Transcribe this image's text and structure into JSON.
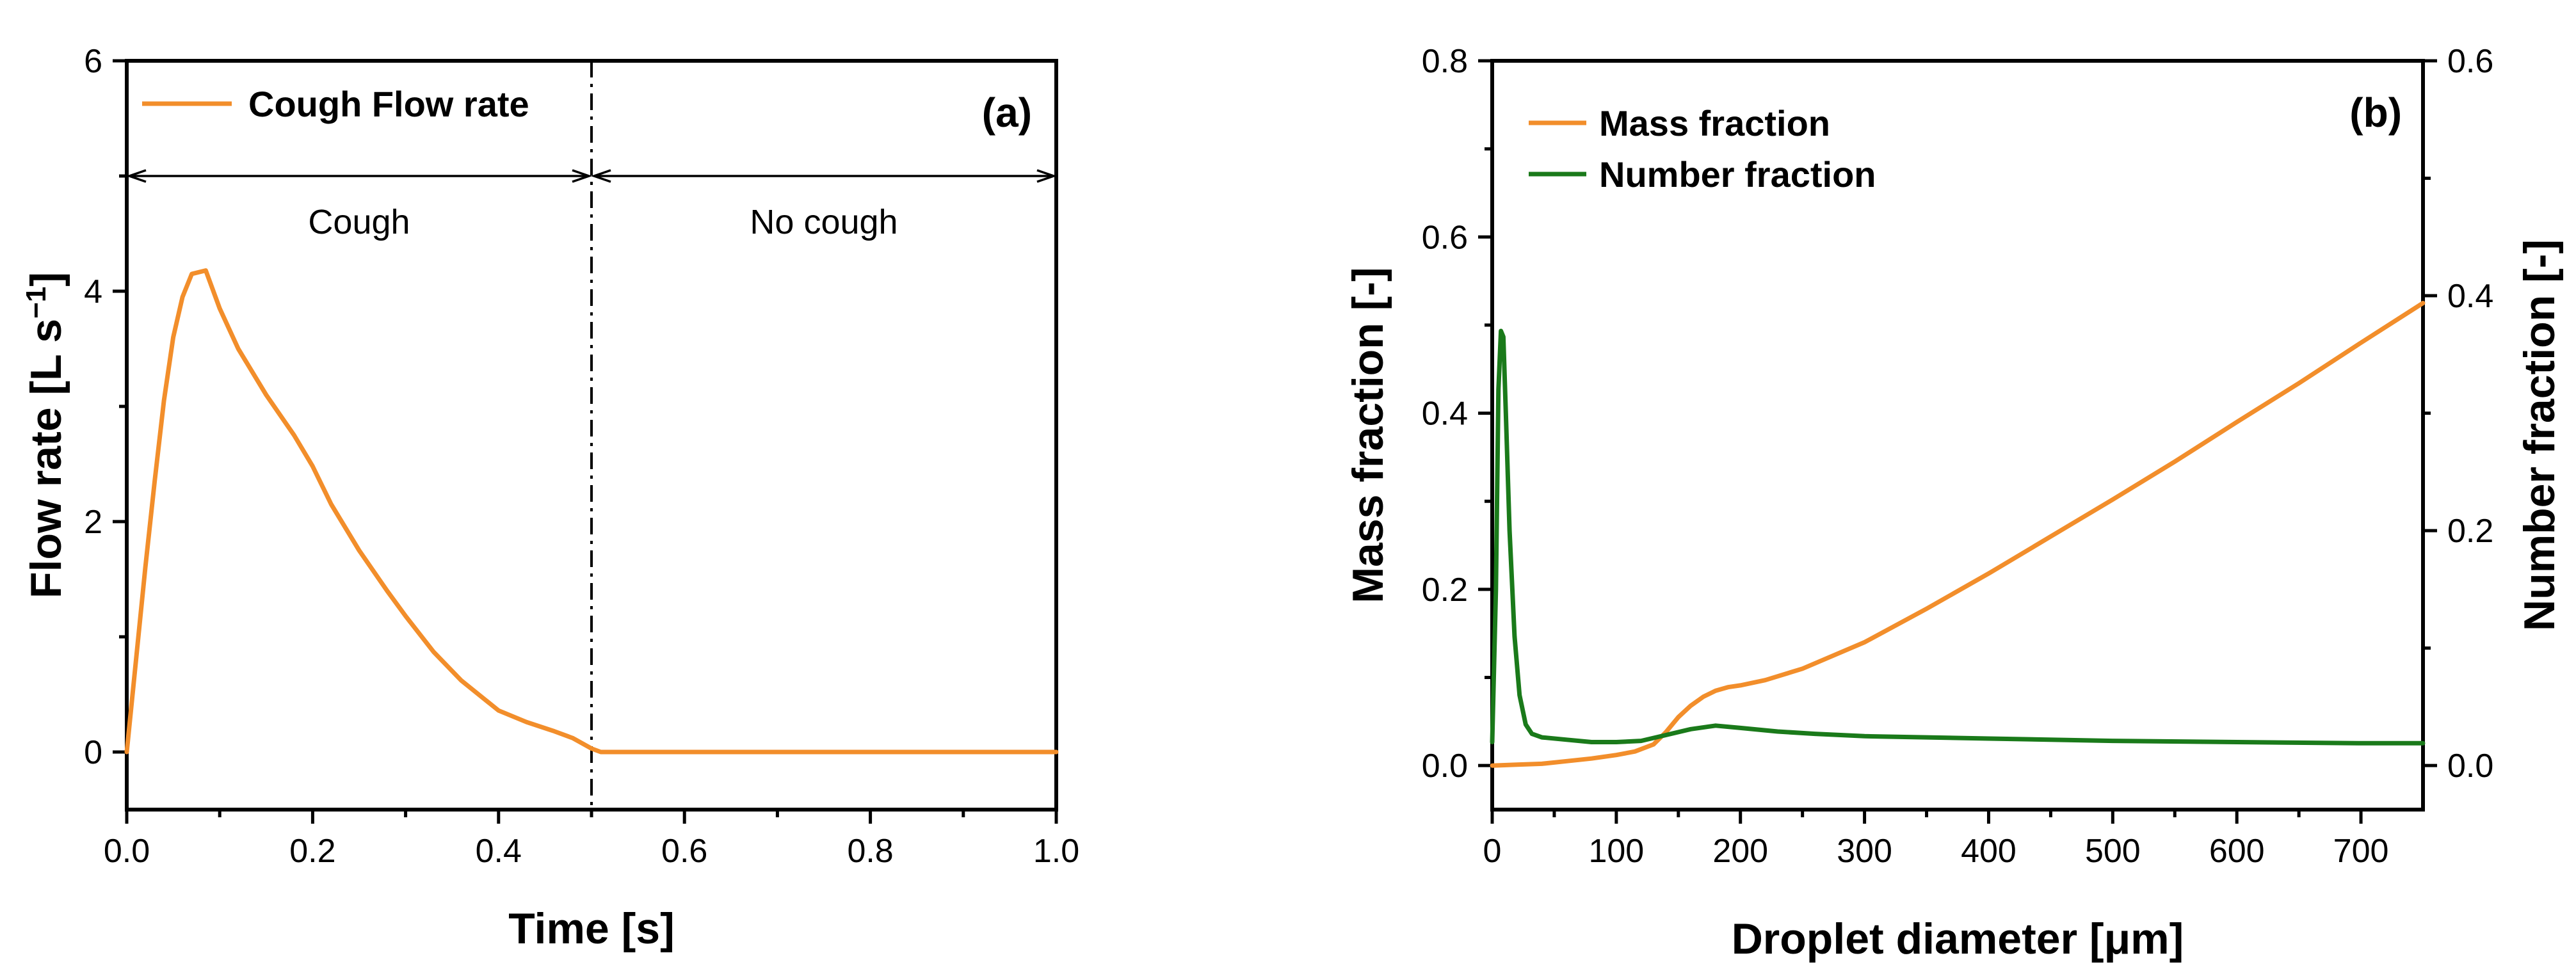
{
  "chart_data": [
    {
      "panel_label": "(a)",
      "type": "line",
      "title": "",
      "xlabel": "Time [s]",
      "ylabel": "Flow rate [L s",
      "ylabel_superscript": "−1",
      "ylabel_suffix": "]",
      "xlim": [
        0.0,
        1.0
      ],
      "ylim": [
        -0.5,
        6
      ],
      "xticks": [
        0.0,
        0.2,
        0.4,
        0.6,
        0.8,
        1.0
      ],
      "xtick_labels": [
        "0.0",
        "0.2",
        "0.4",
        "0.6",
        "0.8",
        "1.0"
      ],
      "yticks": [
        0,
        2,
        4,
        6
      ],
      "ytick_labels": [
        "0",
        "2",
        "4",
        "6"
      ],
      "legend": [
        "Cough Flow rate"
      ],
      "legend_position": "top-left",
      "annotations": {
        "divider_x": 0.5,
        "arrow_y": 5.0,
        "cough_label": "Cough",
        "no_cough_label": "No cough",
        "label_y": 4.6
      },
      "series": [
        {
          "name": "Cough Flow rate",
          "color": "#F28E2B",
          "x": [
            0.0,
            0.01,
            0.02,
            0.03,
            0.04,
            0.05,
            0.06,
            0.07,
            0.085,
            0.1,
            0.12,
            0.15,
            0.18,
            0.2,
            0.22,
            0.25,
            0.28,
            0.3,
            0.33,
            0.36,
            0.4,
            0.43,
            0.46,
            0.48,
            0.5,
            0.51,
            0.6,
            0.7,
            0.8,
            0.9,
            1.0
          ],
          "y": [
            0.0,
            0.8,
            1.6,
            2.35,
            3.05,
            3.6,
            3.95,
            4.15,
            4.18,
            3.85,
            3.5,
            3.1,
            2.75,
            2.48,
            2.15,
            1.75,
            1.4,
            1.18,
            0.87,
            0.62,
            0.36,
            0.26,
            0.18,
            0.12,
            0.03,
            0.0,
            0.0,
            0.0,
            0.0,
            0.0,
            0.0
          ]
        }
      ]
    },
    {
      "panel_label": "(b)",
      "type": "line",
      "title": "",
      "xlabel": "Droplet diameter [μm]",
      "ylabel": "Mass fraction [-]",
      "ylabel_right": "Number fraction [-]",
      "xlim": [
        0,
        750
      ],
      "ylim": [
        -0.05,
        0.8
      ],
      "ylim_right": [
        -0.0375,
        0.6
      ],
      "xticks": [
        0,
        100,
        200,
        300,
        400,
        500,
        600,
        700
      ],
      "xtick_labels": [
        "0",
        "100",
        "200",
        "300",
        "400",
        "500",
        "600",
        "700"
      ],
      "yticks": [
        0.0,
        0.2,
        0.4,
        0.6,
        0.8
      ],
      "ytick_labels": [
        "0.0",
        "0.2",
        "0.4",
        "0.6",
        "0.8"
      ],
      "yticks_right": [
        0.0,
        0.2,
        0.4,
        0.6
      ],
      "ytick_labels_right": [
        "0.0",
        "0.2",
        "0.4",
        "0.6"
      ],
      "legend": [
        "Mass fraction",
        "Number fraction"
      ],
      "legend_position": "top-left",
      "series": [
        {
          "name": "Mass fraction",
          "axis": "left",
          "color": "#F28E2B",
          "x": [
            0,
            20,
            40,
            60,
            80,
            100,
            115,
            130,
            140,
            150,
            160,
            170,
            180,
            190,
            200,
            220,
            250,
            300,
            350,
            400,
            450,
            500,
            550,
            600,
            650,
            700,
            750
          ],
          "y": [
            0.0,
            0.001,
            0.002,
            0.005,
            0.008,
            0.012,
            0.016,
            0.024,
            0.038,
            0.055,
            0.068,
            0.078,
            0.085,
            0.089,
            0.091,
            0.097,
            0.11,
            0.14,
            0.178,
            0.218,
            0.26,
            0.302,
            0.345,
            0.39,
            0.434,
            0.48,
            0.525
          ]
        },
        {
          "name": "Number fraction",
          "axis": "right",
          "color": "#1A7A1A",
          "x": [
            0,
            3,
            5,
            7,
            9,
            11,
            14,
            18,
            22,
            27,
            32,
            40,
            60,
            80,
            100,
            120,
            140,
            160,
            180,
            200,
            230,
            260,
            300,
            400,
            500,
            600,
            700,
            750
          ],
          "y": [
            0.02,
            0.15,
            0.32,
            0.37,
            0.365,
            0.3,
            0.2,
            0.11,
            0.06,
            0.035,
            0.027,
            0.024,
            0.022,
            0.02,
            0.02,
            0.021,
            0.026,
            0.031,
            0.034,
            0.032,
            0.029,
            0.027,
            0.025,
            0.023,
            0.021,
            0.02,
            0.019,
            0.019
          ]
        }
      ]
    }
  ]
}
